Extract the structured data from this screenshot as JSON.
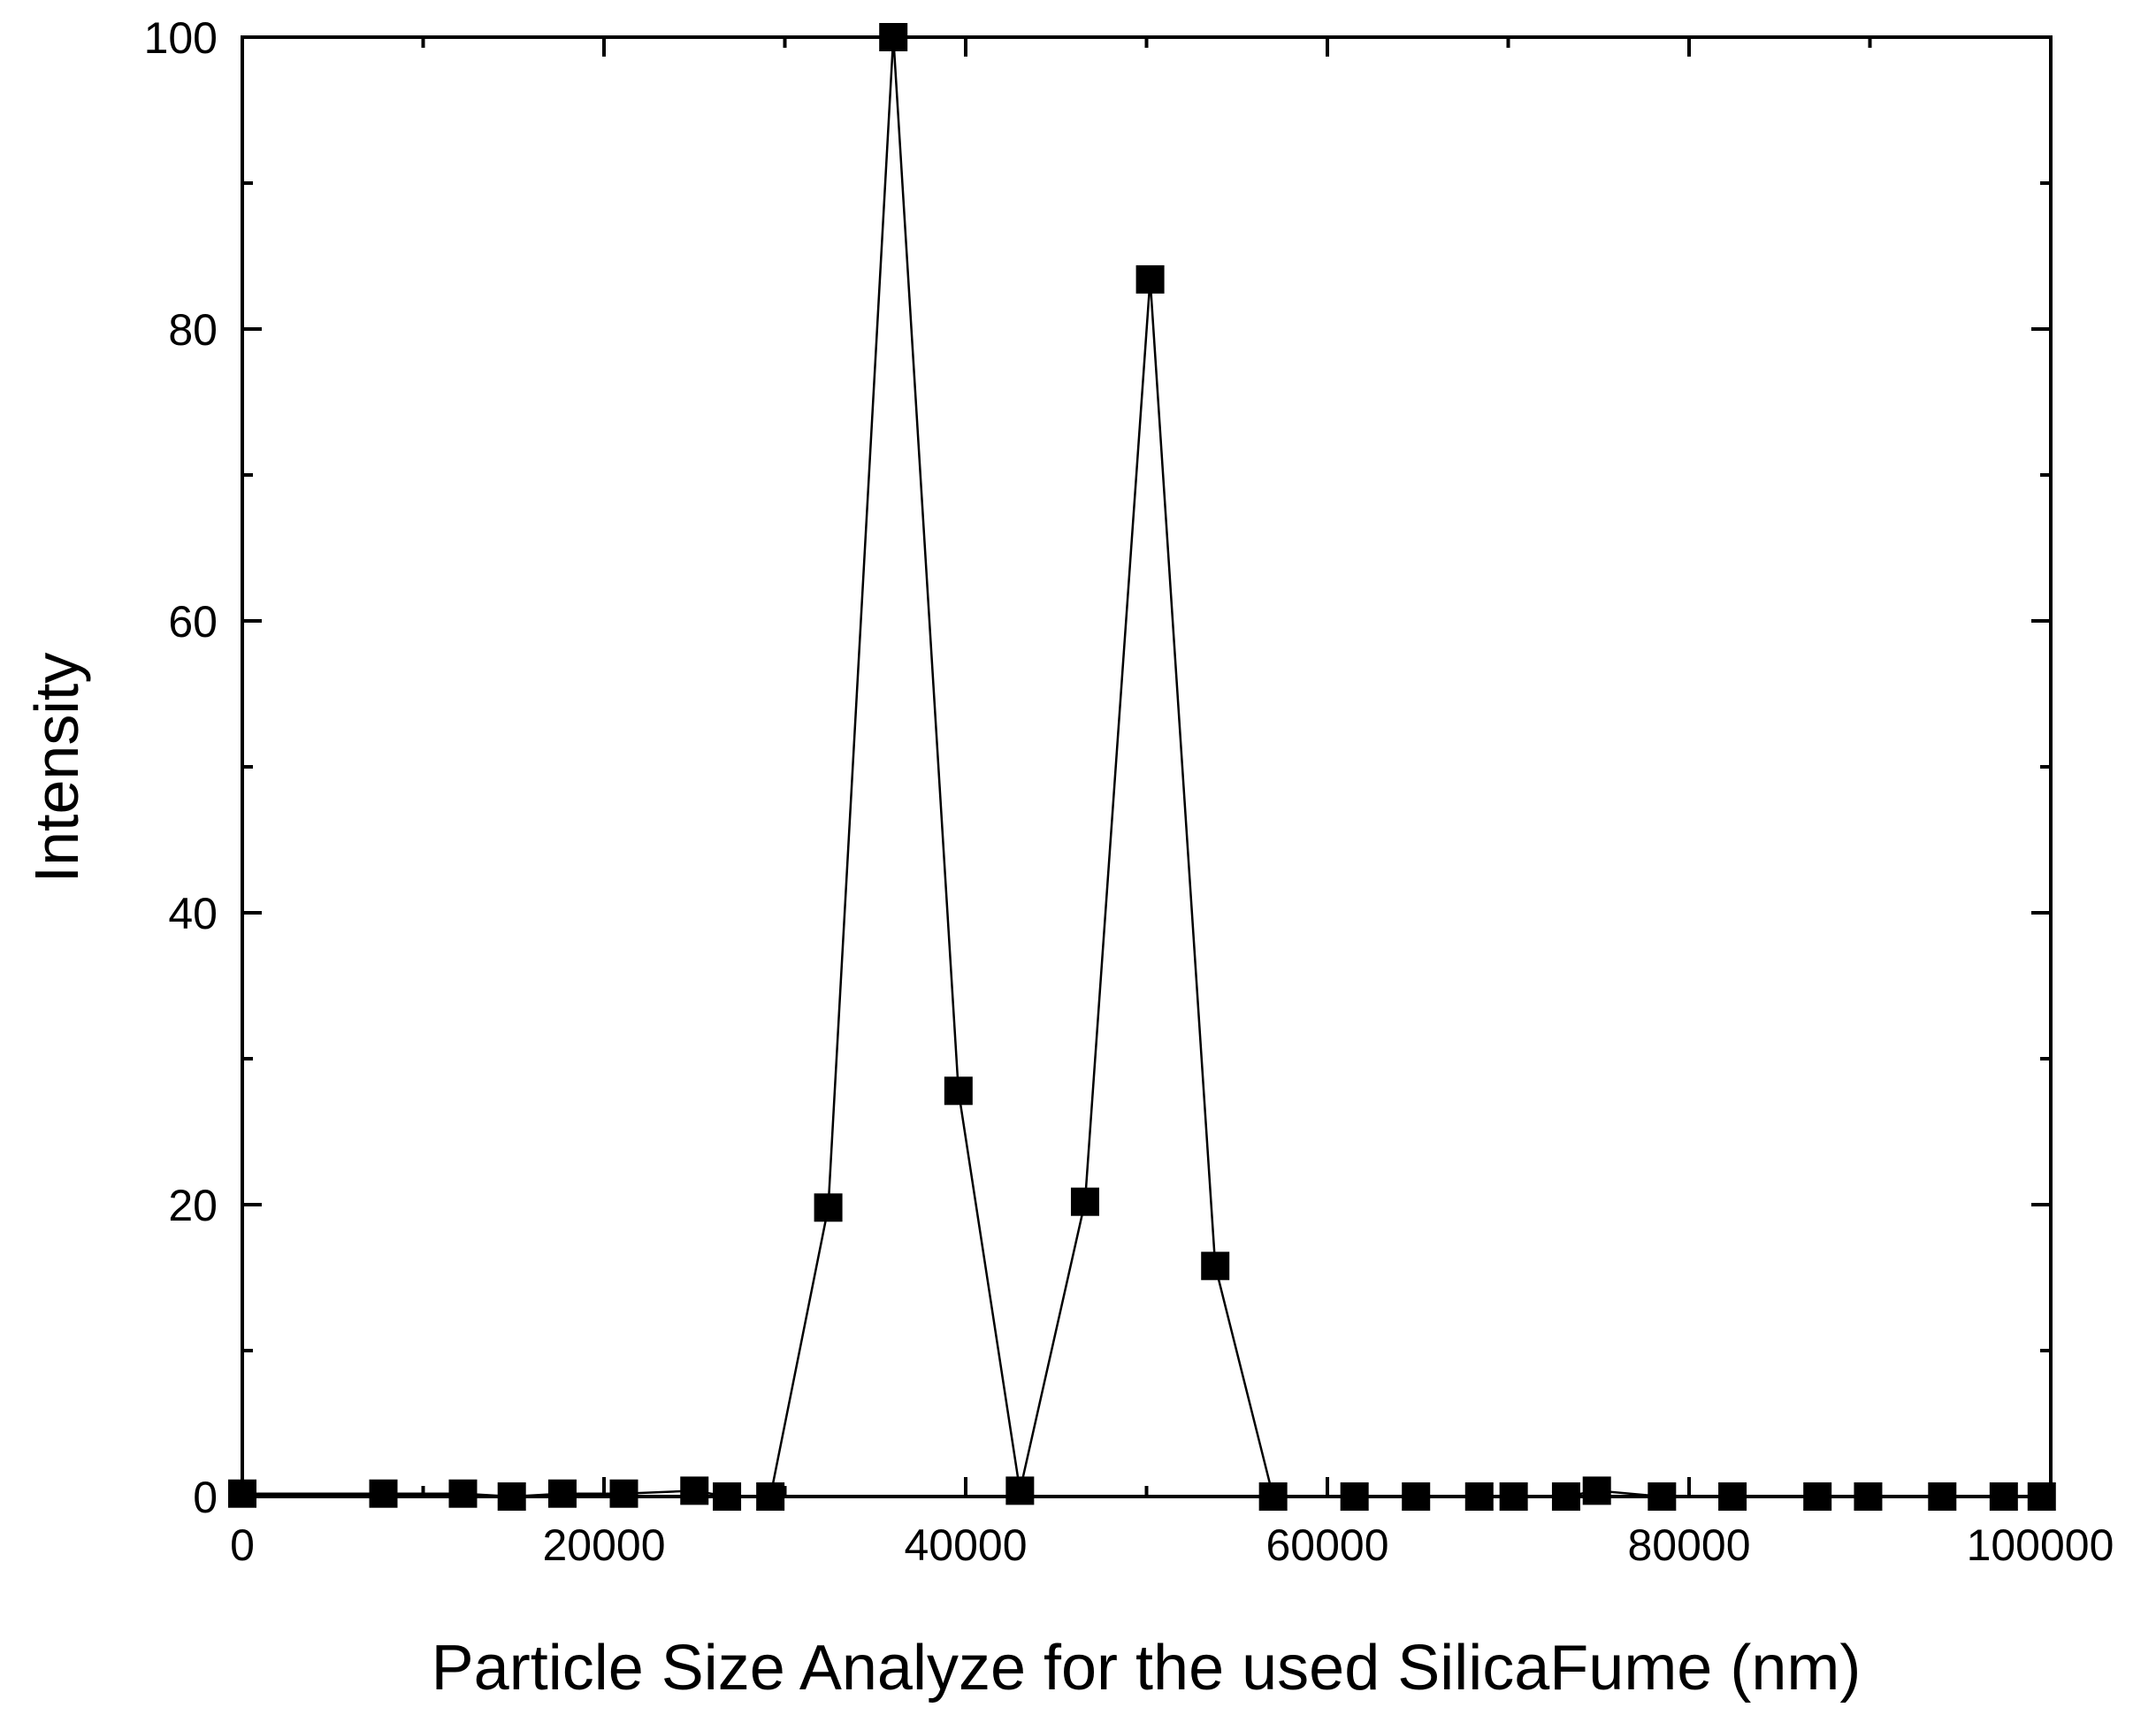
{
  "chart_data": {
    "type": "line",
    "title": "",
    "xlabel": "Particle Size Analyze for the used SilicaFume (nm)",
    "ylabel": "Intensity",
    "xlim": [
      0,
      100000
    ],
    "ylim": [
      0,
      100
    ],
    "xticks": [
      "0",
      "20000",
      "40000",
      "60000",
      "80000",
      "100000"
    ],
    "yticks": [
      "0",
      "20",
      "40",
      "60",
      "80",
      "100"
    ],
    "grid": false,
    "legend": "none",
    "marker": "square",
    "colors": {
      "line": "#000000",
      "marker": "#000000"
    },
    "series": [
      {
        "x": [
          0,
          7800,
          12200,
          14900,
          17700,
          21100,
          25000,
          26800,
          29200,
          32400,
          36000,
          39600,
          43000,
          46600,
          50200,
          53800,
          57000,
          61500,
          64900,
          68400,
          70300,
          73200,
          74900,
          78500,
          82400,
          87100,
          89900,
          94000,
          97400,
          99500
        ],
        "y": [
          0.2,
          0.2,
          0.2,
          0.0,
          0.2,
          0.2,
          0.4,
          0.0,
          0.0,
          19.8,
          100.0,
          27.8,
          0.4,
          20.2,
          83.4,
          15.8,
          0.0,
          0.0,
          0.0,
          0.0,
          0.0,
          0.0,
          0.4,
          0.0,
          0.0,
          0.0,
          0.0,
          0.0,
          0.0,
          0.0
        ]
      }
    ]
  }
}
